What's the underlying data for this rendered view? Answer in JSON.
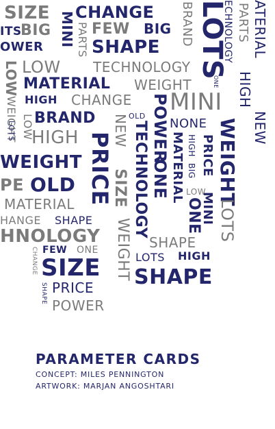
{
  "cloud": {
    "words": [
      "SIZE",
      "CHANGE",
      "ITS",
      "BIG",
      "MINI",
      "PARTS",
      "FEW",
      "BIG",
      "OWER",
      "SHAPE",
      "BRAND",
      "LOTS",
      "ECHNOLOGY",
      "PARTS",
      "ATERIAL",
      "HIGH",
      "NEW",
      "LOW",
      "TECHNOLOGY",
      "MATERIAL",
      "WEIGHT",
      "ONE",
      "MATERIAL",
      "WEIGHT",
      "HIGH",
      "CHANGE",
      "MINI",
      "BRAND",
      "OLD",
      "LOW",
      "LOTS",
      "HIGH",
      "POWER",
      "ONE",
      "NEW",
      "TECHNOLOGY",
      "NONE",
      "WEIGHT",
      "PRICE",
      "WEIGHT",
      "MATERIAL",
      "HIGH",
      "BIG",
      "PRICE",
      "EPE",
      "OLD",
      "SIZE",
      "MATERIAL",
      "LOW",
      "MINI",
      "ONE",
      "PE",
      "HANGE",
      "SHAPE",
      "HNOLOGY",
      "LOTS",
      "FEW",
      "ONE",
      "SHAPE",
      "LOTS",
      "HIGH",
      "CHANGE",
      "SIZE",
      "WEIGHT",
      "SHAPE",
      "PRICE",
      "SHAPE",
      "POWER"
    ]
  },
  "credits": {
    "title": "PARAMETER CARDS",
    "concept_label": "CONCEPT:",
    "concept_name": "MILES PENNINGTON",
    "artwork_label": "ARTWORK:",
    "artwork_name": "MARJAN ANGOSHTARI"
  }
}
